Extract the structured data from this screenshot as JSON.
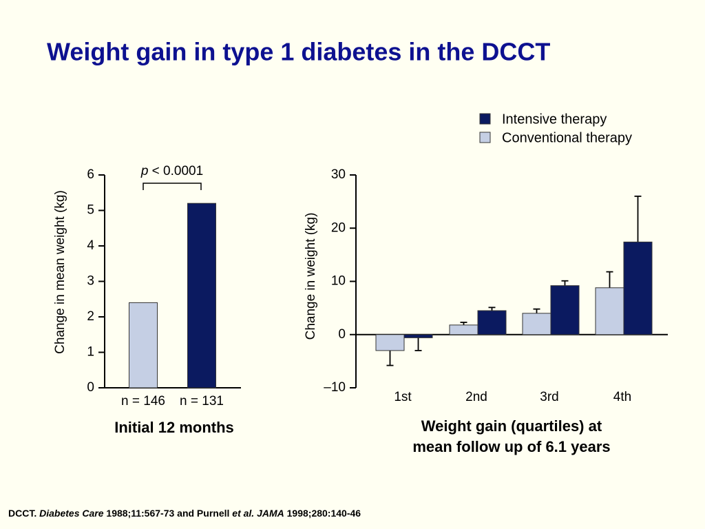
{
  "title": "Weight gain in type 1 diabetes in the DCCT",
  "footnote": [
    "DCCT. ",
    "Diabetes Care",
    " 1988;11:567-73 and Purnell ",
    "et al. JAMA",
    " 1998;280:140-46"
  ],
  "chart_data": [
    {
      "type": "bar",
      "ylabel": "Change in mean weight (kg)",
      "xlabel": "Initial 12 months",
      "annotation": [
        "p",
        " < 0.0001"
      ],
      "categories": [
        "n = 146",
        "n = 131"
      ],
      "values": [
        2.4,
        5.2
      ],
      "colors": [
        "#c5cfe4",
        "#0b1a60"
      ],
      "ylim": [
        0,
        6
      ],
      "yticks": [
        0,
        1,
        2,
        3,
        4,
        5,
        6
      ]
    },
    {
      "type": "grouped-bar-error",
      "ylabel": "Change in weight (kg)",
      "xlabel": [
        "Weight gain (quartiles) at",
        "mean follow up of 6.1 years"
      ],
      "categories": [
        "1st",
        "2nd",
        "3rd",
        "4th"
      ],
      "series": [
        {
          "name": "Intensive therapy",
          "color": "#0b1a60",
          "values": [
            -0.6,
            4.5,
            9.2,
            17.4
          ],
          "errors": [
            2.4,
            0.6,
            0.9,
            8.6
          ]
        },
        {
          "name": "Conventional therapy",
          "color": "#c5cfe4",
          "values": [
            -3,
            1.8,
            4.0,
            8.8
          ],
          "errors": [
            2.8,
            0.5,
            0.8,
            3.0
          ]
        }
      ],
      "ylim": [
        -10,
        30
      ],
      "yticks": [
        {
          "value": -10,
          "label": "–10"
        },
        0,
        10,
        20,
        30
      ]
    }
  ]
}
